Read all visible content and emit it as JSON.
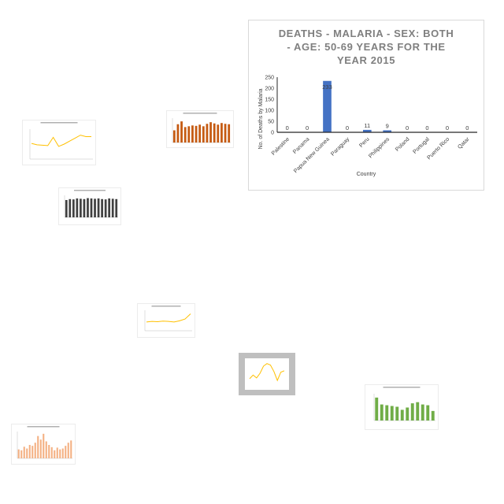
{
  "chart_data": [
    {
      "type": "bar",
      "title_lines": [
        "DEATHS - MALARIA - SEX: BOTH",
        "- AGE: 50-69 YEARS FOR THE",
        "YEAR 2015"
      ],
      "xlabel": "Country",
      "ylabel": "No. of Deaths by Malaria",
      "categories": [
        "Palestine",
        "Panama",
        "Papua New Guinea",
        "Paraguay",
        "Peru",
        "Philippines",
        "Poland",
        "Portugal",
        "Puerto Rico",
        "Qatar"
      ],
      "values": [
        0,
        0,
        233,
        0,
        11,
        9,
        0,
        0,
        0,
        0
      ],
      "data_labels": [
        "0",
        "0",
        "233",
        "0",
        "11",
        "9",
        "0",
        "0",
        "0",
        "0"
      ],
      "yticks": [
        0,
        50,
        100,
        150,
        200,
        250
      ],
      "ylim": [
        0,
        250
      ],
      "bar_color": "#4472c4",
      "grid": false
    },
    {
      "type": "line",
      "values": [
        42,
        38,
        37,
        36,
        58,
        34,
        40,
        48,
        56,
        64,
        60,
        60
      ],
      "line_color": "#ffc000",
      "ylim": [
        0,
        80
      ]
    },
    {
      "type": "bar",
      "values": [
        30,
        45,
        52,
        38,
        40,
        42,
        41,
        44,
        40,
        46,
        50,
        47,
        44,
        48,
        46,
        45
      ],
      "bar_color": "#c55a11",
      "ylim": [
        0,
        60
      ]
    },
    {
      "type": "bar",
      "values": [
        55,
        58,
        57,
        60,
        59,
        58,
        61,
        60,
        59,
        60,
        58,
        57,
        60,
        59,
        58
      ],
      "bar_color": "#404040",
      "ylim": [
        0,
        70
      ]
    },
    {
      "type": "line",
      "values": [
        30,
        32,
        31,
        33,
        32,
        30,
        34,
        40,
        58
      ],
      "line_color": "#ffc000",
      "ylim": [
        0,
        70
      ]
    },
    {
      "type": "line",
      "values": [
        20,
        30,
        22,
        35,
        55,
        62,
        58,
        40,
        15,
        38,
        42
      ],
      "line_color": "#ffc000",
      "ylim": [
        0,
        70
      ]
    },
    {
      "type": "bar",
      "values": [
        60,
        42,
        40,
        38,
        36,
        28,
        34,
        45,
        48,
        42,
        40,
        25
      ],
      "bar_color": "#70ad47",
      "ylim": [
        0,
        70
      ]
    },
    {
      "type": "bar",
      "values": [
        20,
        18,
        26,
        22,
        30,
        28,
        35,
        50,
        42,
        55,
        38,
        30,
        25,
        18,
        24,
        20,
        22,
        28,
        35,
        40
      ],
      "bar_color": "#f4b183",
      "ylim": [
        0,
        60
      ]
    }
  ],
  "colors": {
    "card_border": "#d9d9d9",
    "title_gray": "#7f7f7f",
    "axis": "#262626"
  }
}
